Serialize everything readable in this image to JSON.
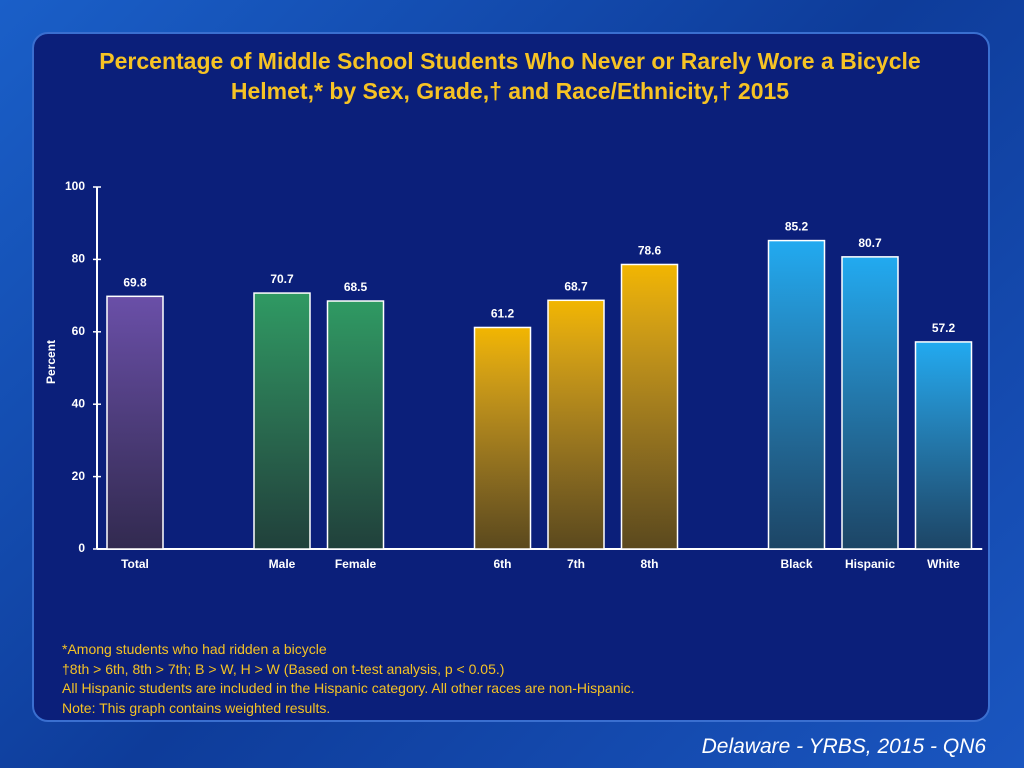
{
  "chart_data": {
    "type": "bar",
    "title": "Percentage of Middle School Students Who Never or Rarely Wore a Bicycle Helmet,* by Sex, Grade,† and Race/Ethnicity,† 2015",
    "y_label": "Percent",
    "categories": [
      "Total",
      null,
      "Male",
      "Female",
      null,
      "6th",
      "7th",
      "8th",
      null,
      "Black",
      "Hispanic",
      "White"
    ],
    "values": [
      69.8,
      null,
      70.7,
      68.5,
      null,
      61.2,
      68.7,
      78.6,
      null,
      85.2,
      80.7,
      57.2
    ],
    "colors": [
      "#6a4fa8",
      null,
      "#2f9a63",
      "#2f9a63",
      null,
      "#f2b600",
      "#f2b600",
      "#f2b600",
      null,
      "#22aaf0",
      "#22aaf0",
      "#22aaf0"
    ],
    "ylim": [
      0,
      100
    ],
    "yticks": [
      0,
      20,
      40,
      60,
      80,
      100
    ],
    "grid": false,
    "footnotes": [
      "*Among students who had ridden a bicycle",
      "†8th > 6th, 8th > 7th; B > W, H > W (Based on t-test analysis, p < 0.05.)",
      "All Hispanic students are included in the Hispanic category.  All other races are non-Hispanic.",
      "Note: This graph contains weighted results."
    ],
    "source": "Delaware - YRBS, 2015 - QN6"
  }
}
